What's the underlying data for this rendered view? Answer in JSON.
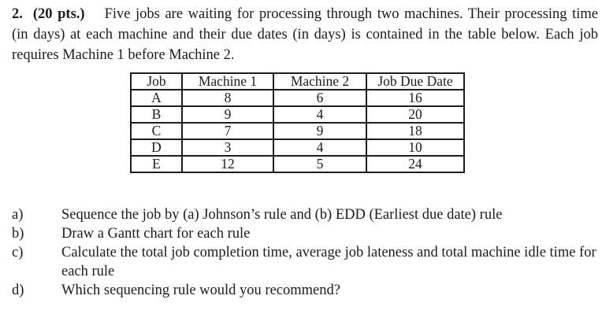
{
  "problem": {
    "number": "2.",
    "points": "(20 pts.)",
    "intro": "Five jobs are waiting for processing through two machines. Their processing time (in days) at each machine and their due dates (in days) is contained in the table below. Each job requires Machine 1 before Machine 2."
  },
  "table": {
    "headers": [
      "Job",
      "Machine 1",
      "Machine 2",
      "Job Due Date"
    ],
    "rows": [
      [
        "A",
        "8",
        "6",
        "16"
      ],
      [
        "B",
        "9",
        "4",
        "20"
      ],
      [
        "C",
        "7",
        "9",
        "18"
      ],
      [
        "D",
        "3",
        "4",
        "10"
      ],
      [
        "E",
        "12",
        "5",
        "24"
      ]
    ]
  },
  "questions": [
    {
      "label": "a)",
      "text": "Sequence the job by (a) Johnson’s rule and (b) EDD (Earliest due date) rule"
    },
    {
      "label": "b)",
      "text": "Draw a Gantt chart for each rule"
    },
    {
      "label": "c)",
      "text": "Calculate the total job completion time, average job lateness and total machine idle time for each rule"
    },
    {
      "label": "d)",
      "text": "Which sequencing rule would you recommend?"
    }
  ]
}
